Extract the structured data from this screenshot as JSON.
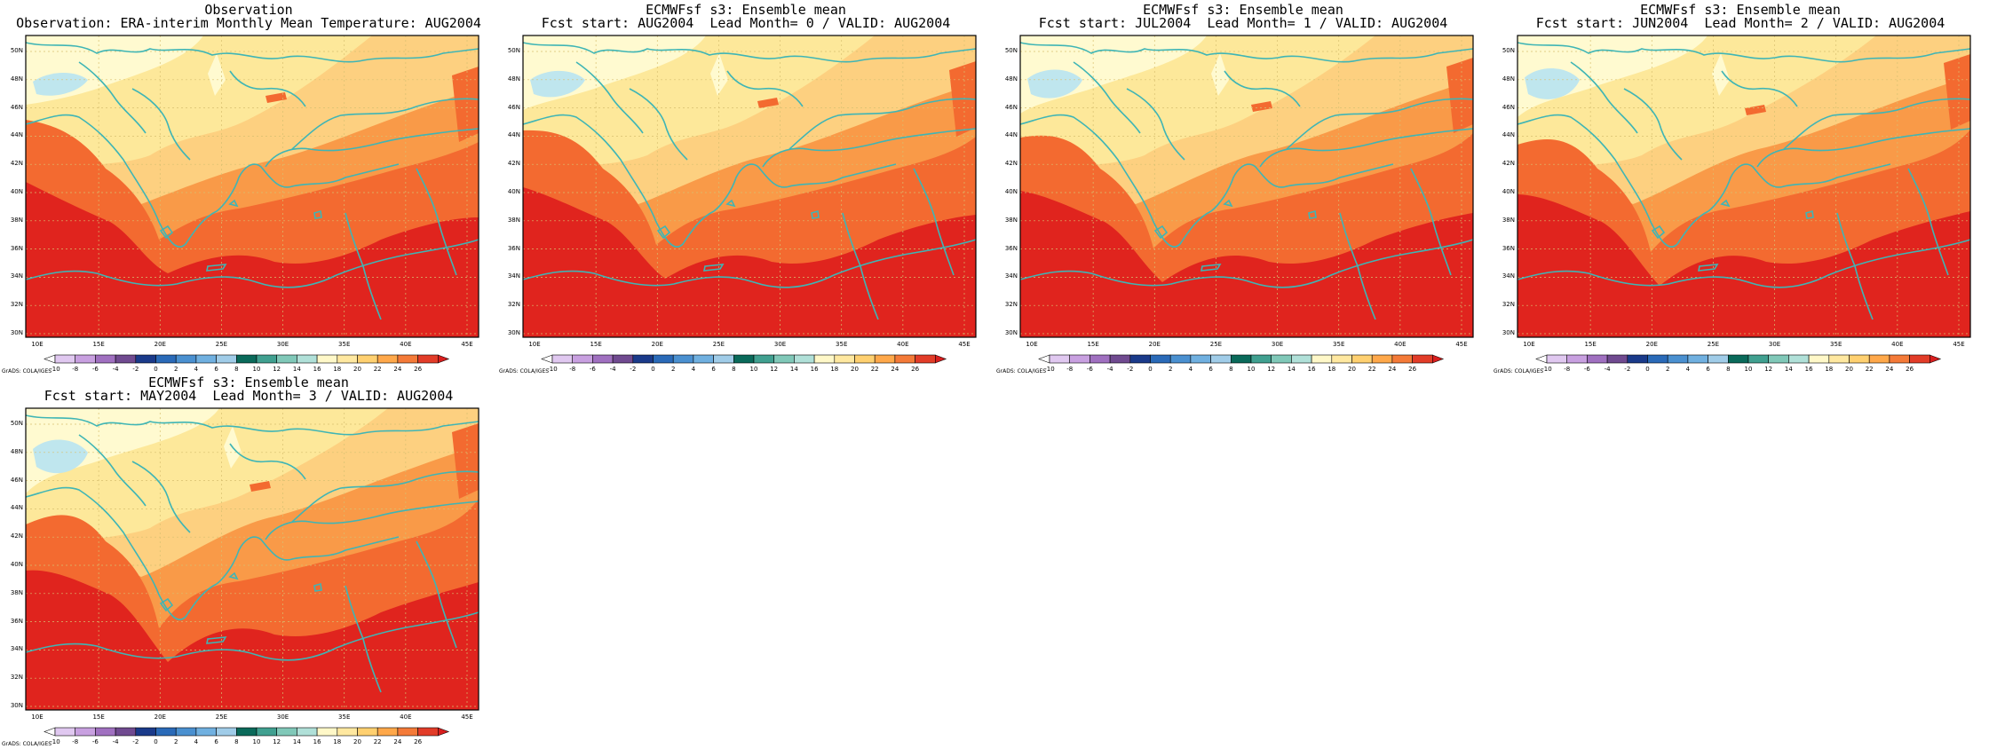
{
  "panels": [
    {
      "title_line1": "Observation",
      "title_line2": "Observation: ERA-interim Monthly Mean Temperature: AUG2004",
      "variant": 0
    },
    {
      "title_line1": "ECMWFsf s3: Ensemble mean",
      "title_line2": "Fcst start: AUG2004  Lead Month= 0 / VALID: AUG2004",
      "variant": 1
    },
    {
      "title_line1": "ECMWFsf s3: Ensemble mean",
      "title_line2": "Fcst start: JUL2004  Lead Month= 1 / VALID: AUG2004",
      "variant": 2
    },
    {
      "title_line1": "ECMWFsf s3: Ensemble mean",
      "title_line2": "Fcst start: JUN2004  Lead Month= 2 / VALID: AUG2004",
      "variant": 3
    },
    {
      "title_line1": "ECMWFsf s3: Ensemble mean",
      "title_line2": "Fcst start: MAY2004  Lead Month= 3 / VALID: AUG2004",
      "variant": 4
    }
  ],
  "map": {
    "lat_labels": [
      "50N",
      "48N",
      "46N",
      "44N",
      "42N",
      "40N",
      "38N",
      "36N",
      "34N",
      "32N",
      "30N"
    ],
    "lon_labels": [
      "10E",
      "15E",
      "20E",
      "25E",
      "30E",
      "35E",
      "40E",
      "45E"
    ],
    "coastline_color": "#3fb5b5",
    "grid_color": "#d8c070"
  },
  "colorbar": {
    "credit": "GrADS: COLA/IGES",
    "labels": [
      "-10",
      "-8",
      "-6",
      "-4",
      "-2",
      "0",
      "2",
      "4",
      "6",
      "8",
      "10",
      "12",
      "14",
      "16",
      "18",
      "20",
      "22",
      "24",
      "26"
    ],
    "colors": [
      "#ffffff",
      "#e0c8f0",
      "#c8a0e0",
      "#a070c0",
      "#704a90",
      "#1a3a8a",
      "#2a6ab8",
      "#4a90d0",
      "#70b0e0",
      "#a0cce8",
      "#0a6a5a",
      "#40a090",
      "#80c8b8",
      "#b0e0d8",
      "#fff8c8",
      "#ffe8a0",
      "#ffd070",
      "#ffa84a",
      "#f47a38",
      "#e23c28",
      "#d81e1e"
    ]
  }
}
